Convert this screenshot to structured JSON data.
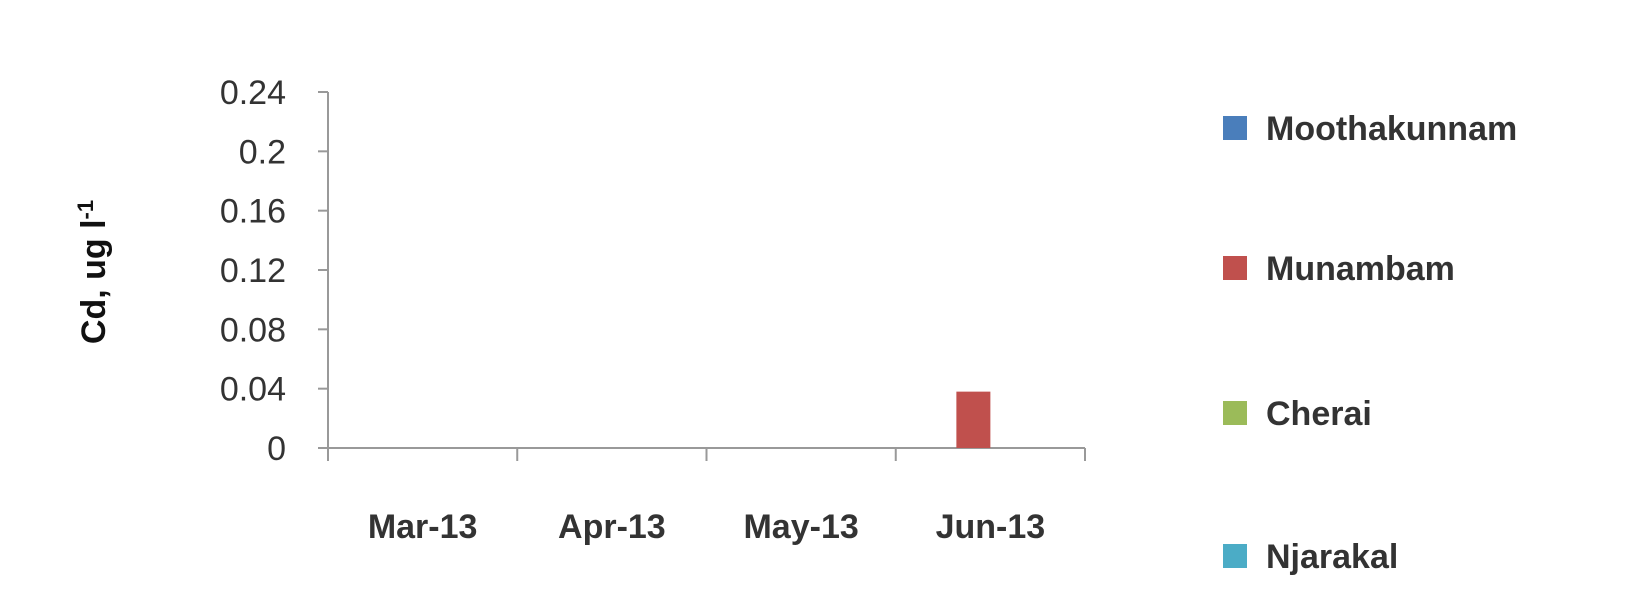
{
  "chart_data": {
    "type": "bar",
    "title": "",
    "xlabel": "",
    "ylabel": "Cd, ug l",
    "ylabel_superscript": "-1",
    "categories": [
      "Mar-13",
      "Apr-13",
      "May-13",
      "Jun-13"
    ],
    "ylim": [
      0,
      0.24
    ],
    "yticks": [
      "0",
      "0.04",
      "0.08",
      "0.12",
      "0.16",
      "0.2",
      "0.24"
    ],
    "grid": false,
    "legend_position": "right",
    "series": [
      {
        "name": "Moothakunnam",
        "color": "#4a7ebb",
        "values": [
          0,
          0,
          0,
          0
        ]
      },
      {
        "name": "Munambam",
        "color": "#c0504d",
        "values": [
          0,
          0,
          0,
          0.038
        ]
      },
      {
        "name": "Cherai",
        "color": "#9bbb59",
        "values": [
          0,
          0,
          0,
          0
        ]
      },
      {
        "name": "Njarakal",
        "color": "#4bacc6",
        "values": [
          0,
          0,
          0,
          0
        ]
      }
    ]
  }
}
